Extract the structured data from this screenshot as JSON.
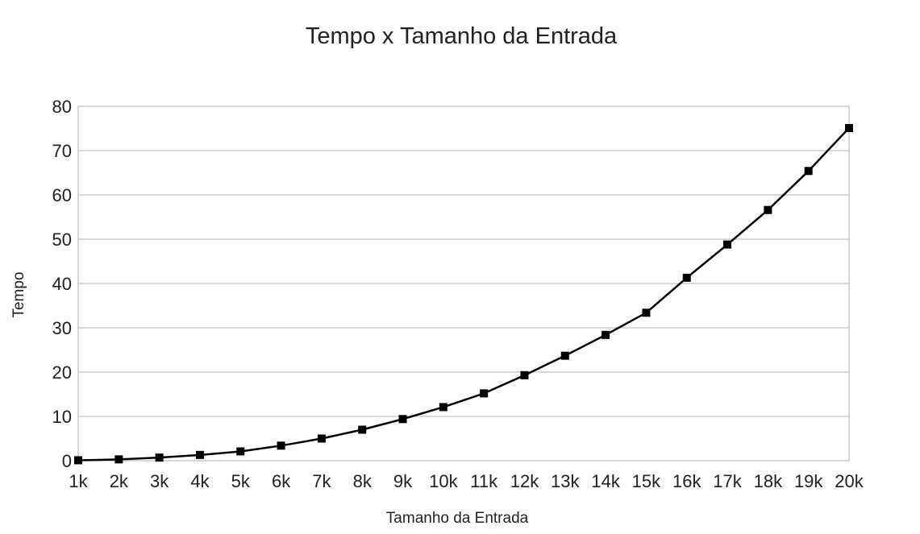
{
  "chart_data": {
    "type": "line",
    "title": "Tempo x Tamanho da Entrada",
    "xlabel": "Tamanho da Entrada",
    "ylabel": "Tempo",
    "categories": [
      "1k",
      "2k",
      "3k",
      "4k",
      "5k",
      "6k",
      "7k",
      "8k",
      "9k",
      "10k",
      "11k",
      "12k",
      "13k",
      "14k",
      "15k",
      "16k",
      "17k",
      "18k",
      "19k",
      "20k"
    ],
    "series": [
      {
        "values": [
          0.1,
          0.3,
          0.7,
          1.3,
          2.1,
          3.4,
          5.0,
          7.0,
          9.4,
          12.1,
          15.2,
          19.3,
          23.7,
          28.4,
          33.4,
          41.3,
          48.8,
          56.6,
          65.4,
          75.1
        ],
        "color": "#000000",
        "marker": "square"
      }
    ],
    "ylim": [
      0,
      80
    ],
    "yticks": [
      0,
      10,
      20,
      30,
      40,
      50,
      60,
      70,
      80
    ],
    "grid": true,
    "legend": "none"
  }
}
